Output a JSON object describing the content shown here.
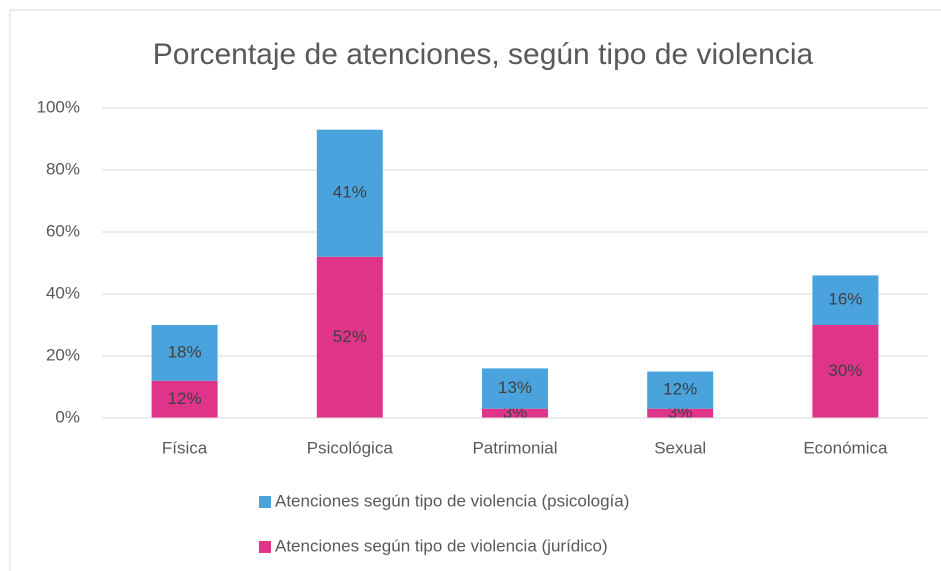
{
  "chart_data": {
    "type": "stacked_bar",
    "title": "Porcentaje de atenciones, según tipo de violencia",
    "categories": [
      "Física",
      "Psicológica",
      "Patrimonial",
      "Sexual",
      "Económica"
    ],
    "series": [
      {
        "name": "Atenciones según tipo de violencia (jurídico)",
        "color": "#e0338a",
        "values": [
          12,
          52,
          3,
          3,
          30
        ],
        "value_labels": [
          "12%",
          "52%",
          "3%",
          "3%",
          "30%"
        ]
      },
      {
        "name": "Atenciones según tipo de violencia (psicología)",
        "color": "#4aa3dc",
        "values": [
          18,
          41,
          13,
          12,
          16
        ],
        "value_labels": [
          "18%",
          "41%",
          "13%",
          "12%",
          "16%"
        ]
      }
    ],
    "ylim": [
      0,
      100
    ],
    "yticks": [
      {
        "value": 0,
        "label": "0%"
      },
      {
        "value": 20,
        "label": "20%"
      },
      {
        "value": 40,
        "label": "40%"
      },
      {
        "value": 60,
        "label": "60%"
      },
      {
        "value": 80,
        "label": "80%"
      },
      {
        "value": 100,
        "label": "100%"
      }
    ],
    "grid": true
  }
}
